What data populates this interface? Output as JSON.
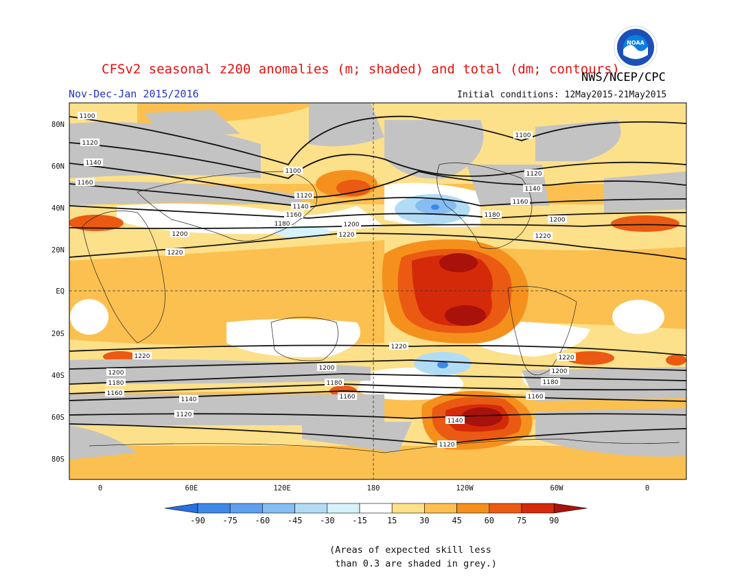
{
  "header": {
    "title": "CFSv2 seasonal z200 anomalies (m; shaded) and total (dm; contours)",
    "organization": "NWS/NCEP/CPC",
    "season": "Nov-Dec-Jan 2015/2016",
    "initial_conditions": "Initial conditions: 12May2015-21May2015"
  },
  "logo": {
    "text": "NOAA",
    "colors": {
      "outer": "#ffffff",
      "ring": "#1c4fb8",
      "sky": "#0a7fe0"
    }
  },
  "map": {
    "projection": "cylindrical-equidistant",
    "lat_labels": [
      "80N",
      "60N",
      "40N",
      "20N",
      "EQ",
      "20S",
      "40S",
      "60S",
      "80S"
    ],
    "lon_labels": [
      "0",
      "60E",
      "120E",
      "180",
      "120W",
      "60W",
      "0"
    ],
    "contour_values_dm": [
      "1100",
      "1120",
      "1140",
      "1160",
      "1180",
      "1200",
      "1220"
    ],
    "grey_meaning": "low skill"
  },
  "colorbar": {
    "labels": [
      "-90",
      "-75",
      "-60",
      "-45",
      "-30",
      "-15",
      "15",
      "30",
      "45",
      "60",
      "75",
      "90"
    ],
    "colors": [
      "#2a6fe0",
      "#3f88e8",
      "#5ea0ee",
      "#86bdf2",
      "#b2dcf6",
      "#d6f2fb",
      "#ffffff",
      "#fde08a",
      "#fbc050",
      "#f5901c",
      "#ea5a12",
      "#d42a0a",
      "#a8120a"
    ]
  },
  "note": "(Areas of expected skill less\n than 0.3 are shaded in grey.)"
}
